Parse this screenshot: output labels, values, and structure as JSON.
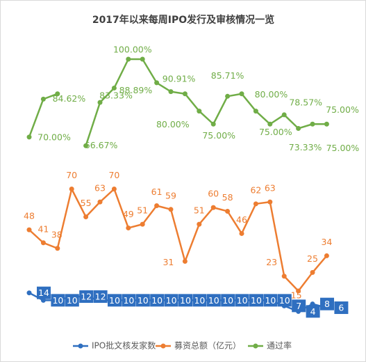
{
  "chart_data": {
    "type": "line",
    "title": "2017年以来每周IPO发行及审核情况一览",
    "categories": [
      null,
      null,
      null,
      null,
      null,
      null,
      null,
      null,
      null,
      null,
      null,
      null,
      null,
      null,
      null,
      null,
      null,
      null,
      null,
      null,
      null,
      null
    ],
    "ylim": [
      0,
      140
    ],
    "y2lim": [
      0,
      100
    ],
    "series": [
      {
        "name": "IPO批文核发家数",
        "color": "#2f6fc0",
        "values": [
          14,
          10,
          10,
          12,
          12,
          10,
          10,
          10,
          10,
          10,
          10,
          10,
          10,
          10,
          10,
          10,
          10,
          10,
          7,
          4,
          8,
          6
        ]
      },
      {
        "name": "募资总额（亿元）",
        "color": "#ed7d31",
        "values": [
          48,
          41,
          38,
          70,
          55,
          63,
          70,
          49,
          51,
          61,
          59,
          31,
          51,
          60,
          58,
          46,
          62,
          63,
          23,
          15,
          25,
          34
        ]
      },
      {
        "name": "通过率",
        "color": "#70ad47",
        "axis": "y2",
        "values": [
          70,
          84.62,
          86.67,
          null,
          66.67,
          83.33,
          88.89,
          100,
          100,
          90.91,
          87.5,
          86.67,
          80,
          75,
          85.71,
          86.67,
          80,
          75,
          78.57,
          73.33,
          75,
          75
        ],
        "value_labels": [
          "70.00%",
          "84.62%",
          null,
          null,
          "66.67%",
          "83.33%",
          "88.89%",
          "100.00%",
          null,
          "90.91%",
          null,
          null,
          "80.00%",
          "75.00%",
          "85.71%",
          null,
          "80.00%",
          "75.00%",
          "78.57%",
          "73.33%",
          "75.00%",
          "75.00%"
        ]
      }
    ],
    "legend": "bottom"
  }
}
